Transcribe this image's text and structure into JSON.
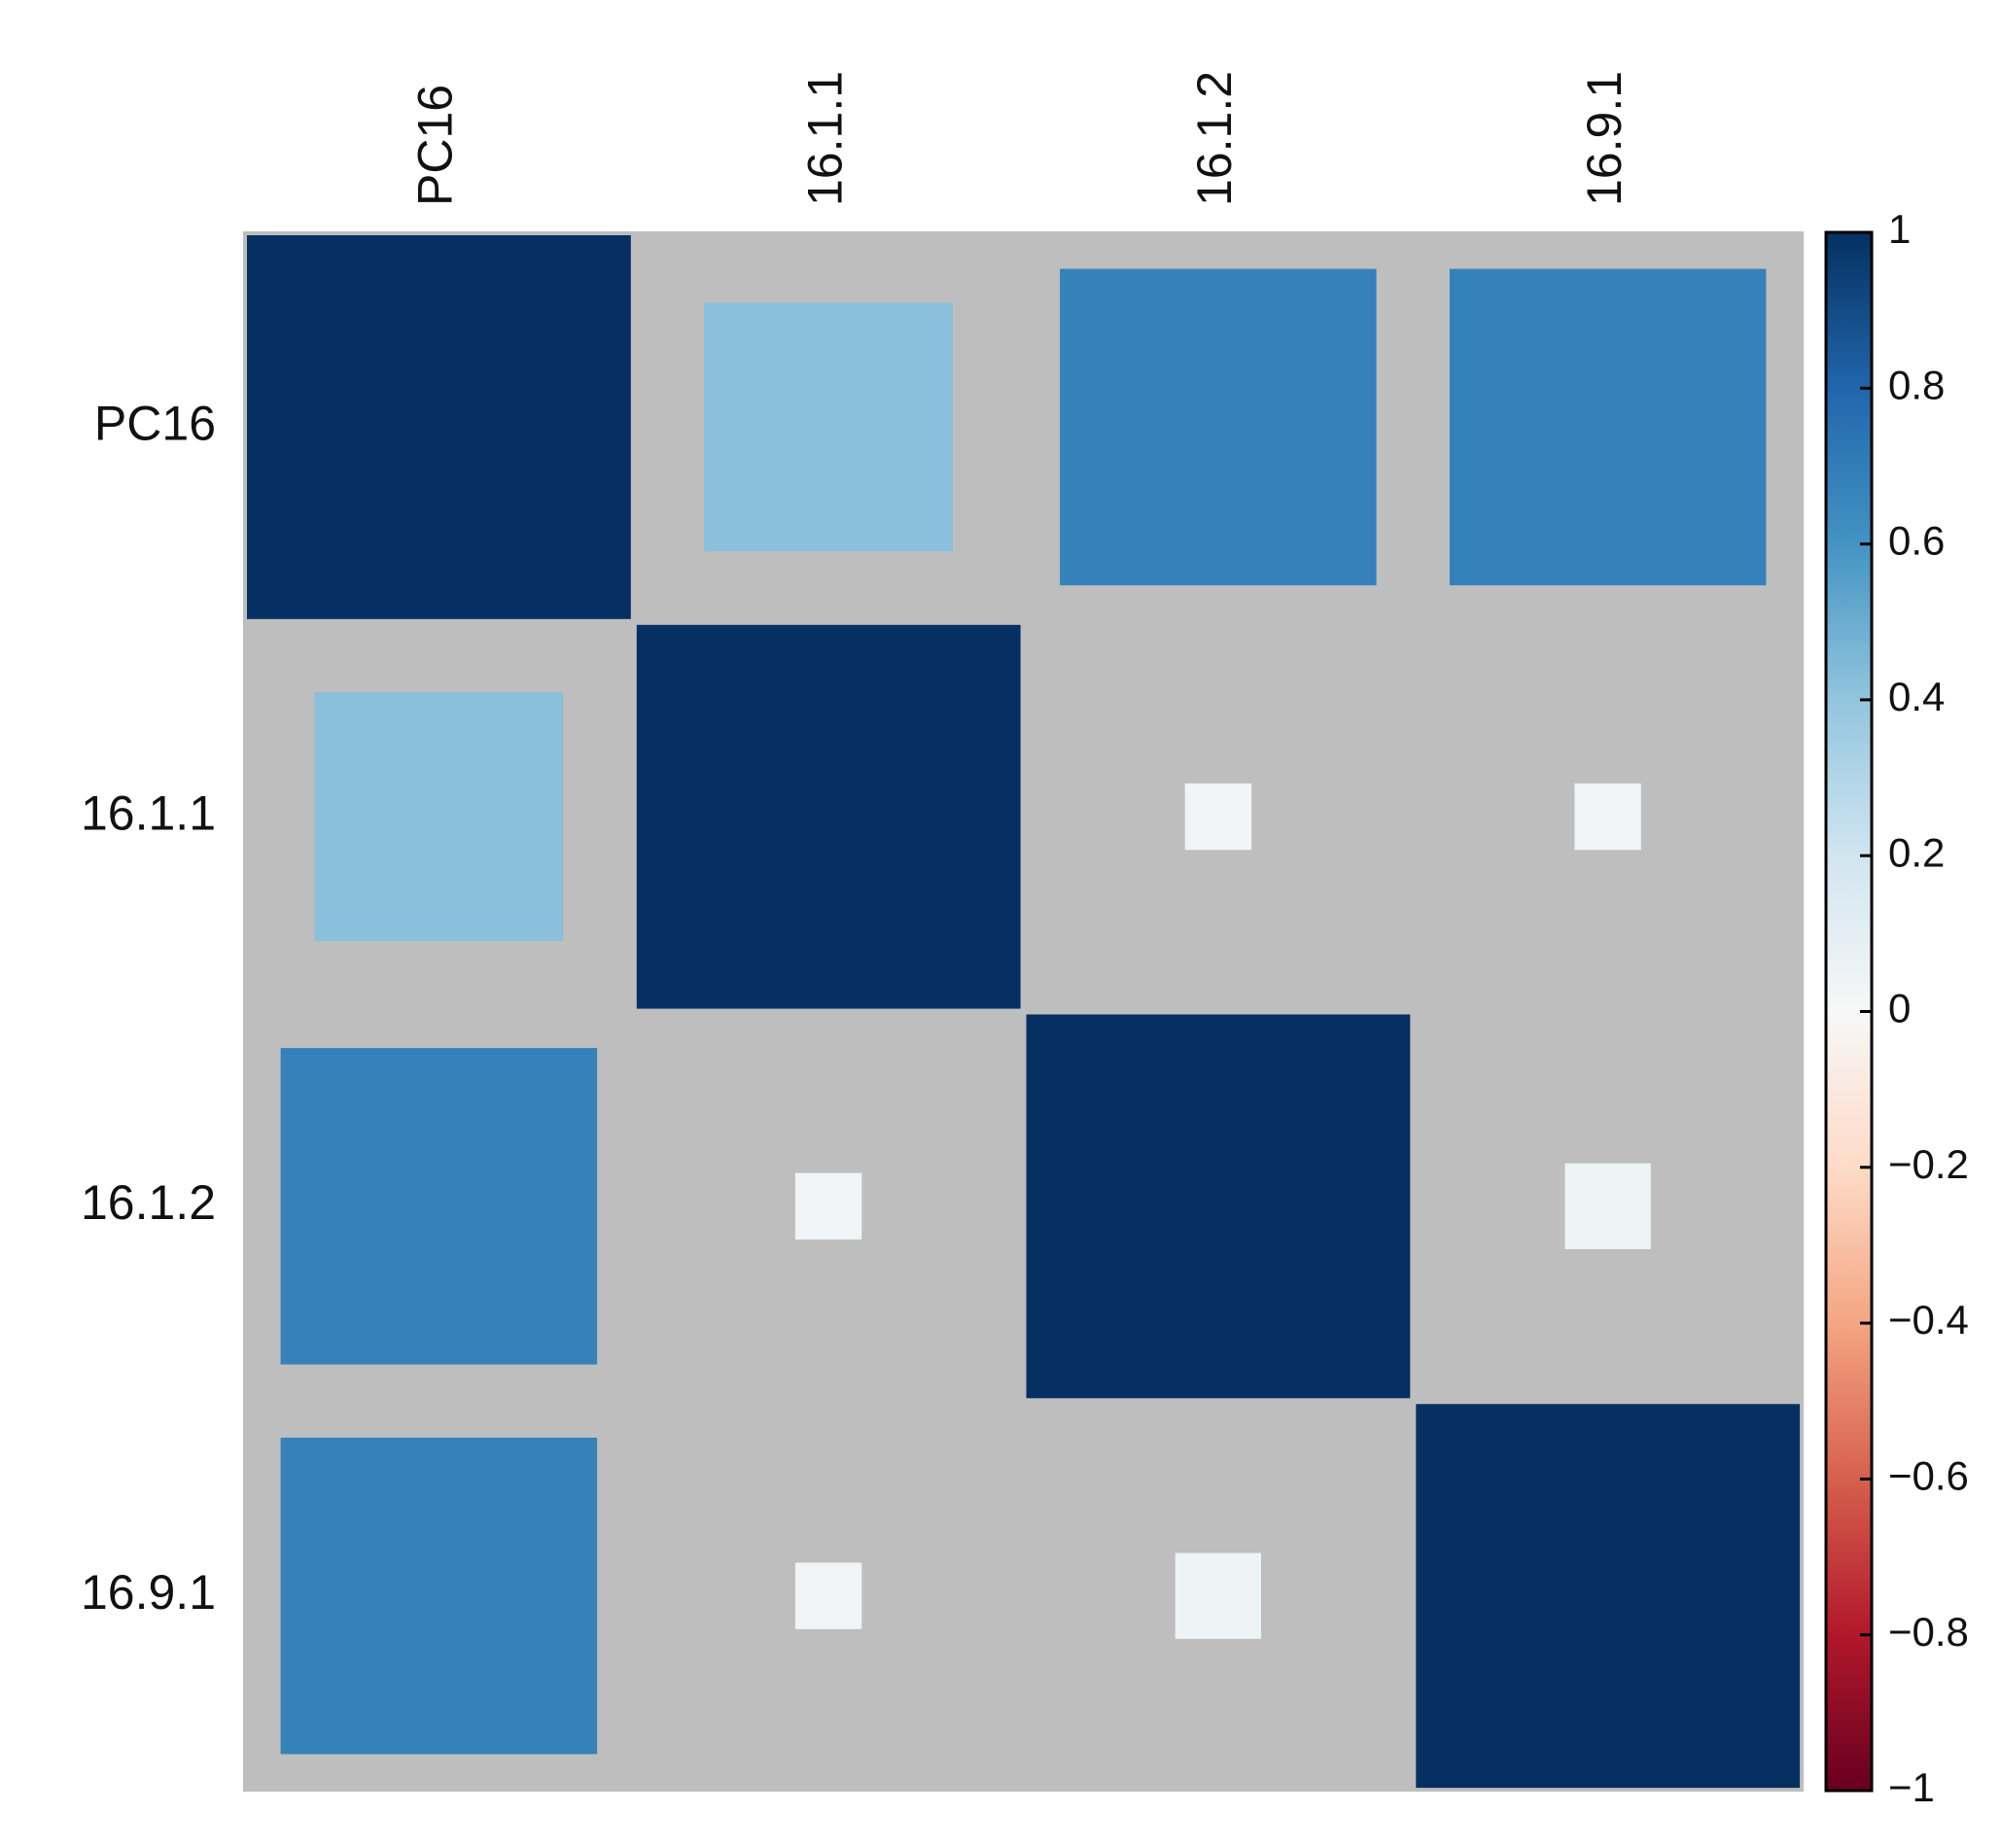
{
  "chart_data": {
    "type": "heatmap",
    "style": "correlation-square",
    "variables": [
      "PC16",
      "16.1.1",
      "16.1.2",
      "16.9.1"
    ],
    "matrix": [
      [
        1.0,
        0.42,
        0.68,
        0.68
      ],
      [
        0.42,
        1.0,
        0.03,
        0.03
      ],
      [
        0.68,
        0.03,
        1.0,
        0.05
      ],
      [
        0.68,
        0.03,
        0.05,
        1.0
      ]
    ],
    "color_range": [
      -1,
      1
    ],
    "colorbar_ticks": [
      "1",
      "0.8",
      "0.6",
      "0.4",
      "0.2",
      "0",
      "−0.2",
      "−0.4",
      "−0.6",
      "−0.8",
      "−1"
    ],
    "colorbar_stops": [
      "#67001f",
      "#b2182b",
      "#d6604d",
      "#f4a582",
      "#fddbc7",
      "#f7f7f7",
      "#d1e5f0",
      "#92c5de",
      "#4393c3",
      "#2166ac",
      "#053061"
    ],
    "background_color": "#bebebe",
    "legend_position": "right"
  }
}
